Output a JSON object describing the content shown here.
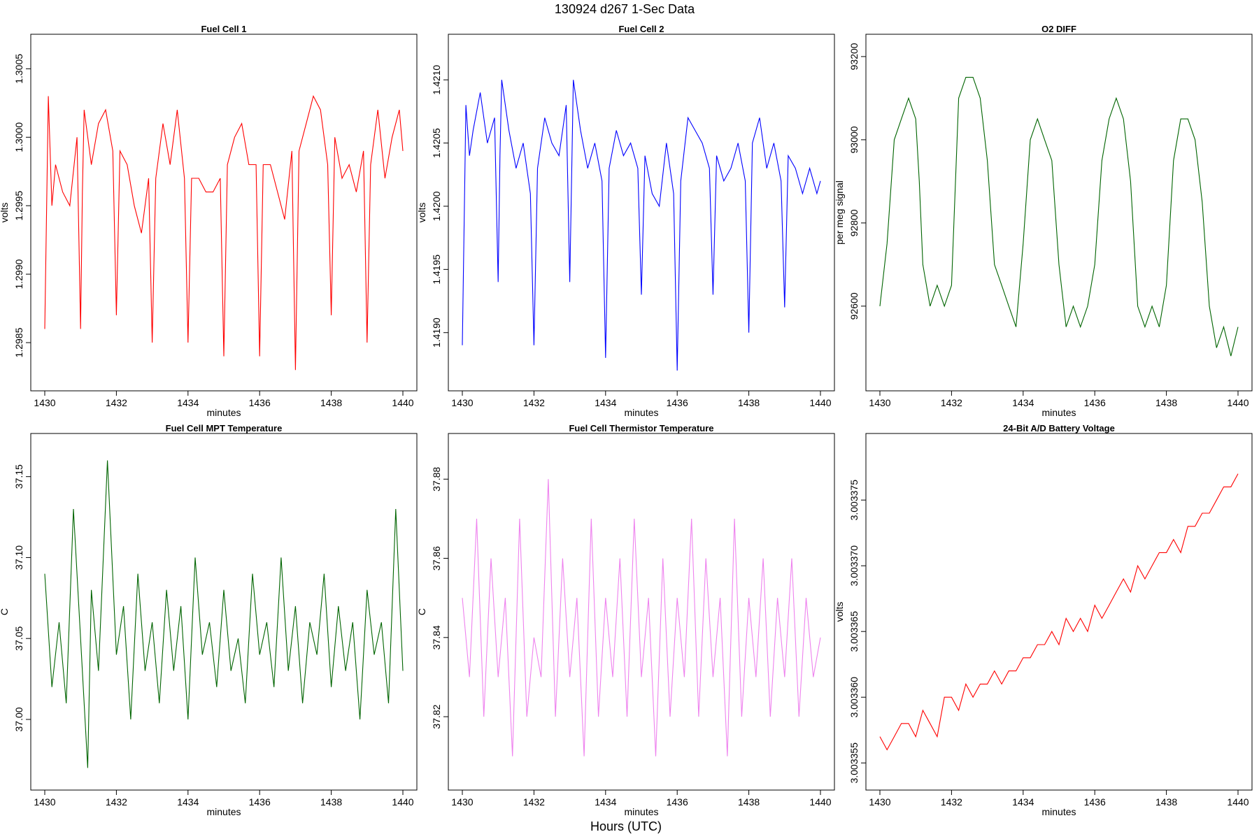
{
  "figure": {
    "title": "130924   d267   1-Sec Data",
    "xlabel": "Hours (UTC)"
  },
  "chart_data": [
    {
      "type": "line",
      "title": "Fuel Cell 1",
      "xlabel": "minutes",
      "ylabel": "volts",
      "color": "#ff0000",
      "xlim": [
        1430,
        1440
      ],
      "ylim": [
        1.29825,
        1.30065
      ],
      "xticks": [
        "1430",
        "1432",
        "1434",
        "1436",
        "1438",
        "1440"
      ],
      "yticks": [
        "1.2985",
        "1.2990",
        "1.2995",
        "1.3000",
        "1.3005"
      ],
      "series": [
        {
          "x": [
            1430.0,
            1430.1,
            1430.2,
            1430.3,
            1430.5,
            1430.7,
            1430.9,
            1431.0,
            1431.05,
            1431.1,
            1431.3,
            1431.5,
            1431.7,
            1431.9,
            1432.0,
            1432.1,
            1432.3,
            1432.5,
            1432.7,
            1432.9,
            1433.0,
            1433.1,
            1433.3,
            1433.5,
            1433.7,
            1433.9,
            1434.0,
            1434.1,
            1434.3,
            1434.5,
            1434.7,
            1434.9,
            1435.0,
            1435.1,
            1435.3,
            1435.5,
            1435.7,
            1435.9,
            1436.0,
            1436.1,
            1436.3,
            1436.5,
            1436.7,
            1436.9,
            1437.0,
            1437.1,
            1437.3,
            1437.5,
            1437.7,
            1437.9,
            1438.0,
            1438.1,
            1438.3,
            1438.5,
            1438.7,
            1438.9,
            1439.0,
            1439.1,
            1439.3,
            1439.5,
            1439.7,
            1439.9,
            1440.0
          ],
          "y": [
            1.2986,
            1.3003,
            1.2995,
            1.2998,
            1.2996,
            1.2995,
            1.3,
            1.2986,
            1.2996,
            1.3002,
            1.2998,
            1.3001,
            1.3002,
            1.2999,
            1.2987,
            1.2999,
            1.2998,
            1.2995,
            1.2993,
            1.2997,
            1.2985,
            1.2997,
            1.3001,
            1.2998,
            1.3002,
            1.2997,
            1.2985,
            1.2997,
            1.2997,
            1.2996,
            1.2996,
            1.2997,
            1.2984,
            1.2998,
            1.3,
            1.3001,
            1.2998,
            1.2998,
            1.2984,
            1.2998,
            1.2998,
            1.2996,
            1.2994,
            1.2999,
            1.2983,
            1.2999,
            1.3001,
            1.3003,
            1.3002,
            1.2998,
            1.2987,
            1.3,
            1.2997,
            1.2998,
            1.2996,
            1.2999,
            1.2985,
            1.2998,
            1.3002,
            1.2997,
            1.3,
            1.3002,
            1.2999
          ]
        }
      ]
    },
    {
      "type": "line",
      "title": "Fuel Cell 2",
      "xlabel": "minutes",
      "ylabel": "volts",
      "color": "#0000ff",
      "xlim": [
        1430,
        1440
      ],
      "ylim": [
        1.41865,
        1.42125
      ],
      "xticks": [
        "1430",
        "1432",
        "1434",
        "1436",
        "1438",
        "1440"
      ],
      "yticks": [
        "1.4190",
        "1.4195",
        "1.4200",
        "1.4205",
        "1.4210"
      ],
      "series": [
        {
          "x": [
            1430.0,
            1430.1,
            1430.2,
            1430.3,
            1430.5,
            1430.7,
            1430.9,
            1431.0,
            1431.05,
            1431.1,
            1431.3,
            1431.5,
            1431.7,
            1431.9,
            1432.0,
            1432.1,
            1432.3,
            1432.5,
            1432.7,
            1432.9,
            1433.0,
            1433.1,
            1433.3,
            1433.5,
            1433.7,
            1433.9,
            1434.0,
            1434.1,
            1434.3,
            1434.5,
            1434.7,
            1434.9,
            1435.0,
            1435.1,
            1435.3,
            1435.5,
            1435.7,
            1435.9,
            1436.0,
            1436.1,
            1436.3,
            1436.5,
            1436.7,
            1436.9,
            1437.0,
            1437.1,
            1437.3,
            1437.5,
            1437.7,
            1437.9,
            1438.0,
            1438.1,
            1438.3,
            1438.5,
            1438.7,
            1438.9,
            1439.0,
            1439.1,
            1439.3,
            1439.5,
            1439.7,
            1439.9,
            1440.0
          ],
          "y": [
            1.4189,
            1.4208,
            1.4204,
            1.4206,
            1.4209,
            1.4205,
            1.4207,
            1.4194,
            1.4204,
            1.421,
            1.4206,
            1.4203,
            1.4205,
            1.4201,
            1.4189,
            1.4203,
            1.4207,
            1.4205,
            1.4204,
            1.4208,
            1.4194,
            1.421,
            1.4206,
            1.4203,
            1.4205,
            1.4202,
            1.4188,
            1.4203,
            1.4206,
            1.4204,
            1.4205,
            1.4203,
            1.4193,
            1.4204,
            1.4201,
            1.42,
            1.4205,
            1.4201,
            1.4187,
            1.4202,
            1.4207,
            1.4206,
            1.4205,
            1.4203,
            1.4193,
            1.4204,
            1.4202,
            1.4203,
            1.4205,
            1.4202,
            1.419,
            1.4205,
            1.4207,
            1.4203,
            1.4205,
            1.4202,
            1.4192,
            1.4204,
            1.4203,
            1.4201,
            1.4203,
            1.4201,
            1.4202
          ]
        }
      ]
    },
    {
      "type": "line",
      "title": "O2 DIFF",
      "xlabel": "minutes",
      "ylabel": "per meg signal",
      "color": "#006400",
      "xlim": [
        1430,
        1440
      ],
      "ylim": [
        92430,
        93220
      ],
      "xticks": [
        "1430",
        "1432",
        "1434",
        "1436",
        "1438",
        "1440"
      ],
      "yticks": [
        "92600",
        "92800",
        "93000",
        "93200"
      ],
      "series": [
        {
          "x": [
            1430.0,
            1430.2,
            1430.4,
            1430.6,
            1430.8,
            1431.0,
            1431.1,
            1431.2,
            1431.4,
            1431.6,
            1431.8,
            1432.0,
            1432.2,
            1432.4,
            1432.6,
            1432.8,
            1433.0,
            1433.2,
            1433.4,
            1433.6,
            1433.8,
            1434.0,
            1434.2,
            1434.4,
            1434.6,
            1434.8,
            1435.0,
            1435.2,
            1435.4,
            1435.6,
            1435.8,
            1436.0,
            1436.2,
            1436.4,
            1436.6,
            1436.8,
            1437.0,
            1437.2,
            1437.4,
            1437.6,
            1437.8,
            1438.0,
            1438.2,
            1438.4,
            1438.6,
            1438.8,
            1439.0,
            1439.2,
            1439.4,
            1439.6,
            1439.8,
            1440.0
          ],
          "y": [
            92600,
            92750,
            93000,
            93050,
            93100,
            93050,
            92900,
            92700,
            92600,
            92650,
            92600,
            92650,
            93100,
            93150,
            93150,
            93100,
            92950,
            92700,
            92650,
            92600,
            92550,
            92750,
            93000,
            93050,
            93000,
            92950,
            92700,
            92550,
            92600,
            92550,
            92600,
            92700,
            92950,
            93050,
            93100,
            93050,
            92900,
            92600,
            92550,
            92600,
            92550,
            92650,
            92950,
            93050,
            93050,
            93000,
            92850,
            92600,
            92500,
            92550,
            92480,
            92550
          ]
        }
      ]
    },
    {
      "type": "line",
      "title": "Fuel Cell MPT Temperature",
      "xlabel": "minutes",
      "ylabel": "C",
      "color": "#006400",
      "xlim": [
        1430,
        1440
      ],
      "ylim": [
        36.965,
        37.168
      ],
      "xticks": [
        "1430",
        "1432",
        "1434",
        "1436",
        "1438",
        "1440"
      ],
      "yticks": [
        "37.00",
        "37.05",
        "37.10",
        "37.15"
      ],
      "series": [
        {
          "x": [
            1430.0,
            1430.2,
            1430.4,
            1430.6,
            1430.8,
            1431.0,
            1431.2,
            1431.3,
            1431.5,
            1431.75,
            1432.0,
            1432.2,
            1432.4,
            1432.6,
            1432.8,
            1433.0,
            1433.2,
            1433.4,
            1433.6,
            1433.8,
            1434.0,
            1434.2,
            1434.4,
            1434.6,
            1434.8,
            1435.0,
            1435.2,
            1435.4,
            1435.6,
            1435.8,
            1436.0,
            1436.2,
            1436.4,
            1436.6,
            1436.8,
            1437.0,
            1437.2,
            1437.4,
            1437.6,
            1437.8,
            1438.0,
            1438.2,
            1438.4,
            1438.6,
            1438.8,
            1439.0,
            1439.2,
            1439.4,
            1439.6,
            1439.8,
            1440.0
          ],
          "y": [
            37.09,
            37.02,
            37.06,
            37.01,
            37.13,
            37.05,
            36.97,
            37.08,
            37.03,
            37.16,
            37.04,
            37.07,
            37.0,
            37.09,
            37.03,
            37.06,
            37.01,
            37.08,
            37.03,
            37.07,
            37.0,
            37.1,
            37.04,
            37.06,
            37.02,
            37.08,
            37.03,
            37.05,
            37.01,
            37.09,
            37.04,
            37.06,
            37.02,
            37.1,
            37.03,
            37.07,
            37.01,
            37.06,
            37.04,
            37.09,
            37.02,
            37.07,
            37.03,
            37.06,
            37.0,
            37.08,
            37.04,
            37.06,
            37.01,
            37.13,
            37.03
          ]
        }
      ]
    },
    {
      "type": "line",
      "title": "Fuel Cell Thermistor Temperature",
      "xlabel": "minutes",
      "ylabel": "C",
      "color": "#ee82ee",
      "xlim": [
        1430,
        1440
      ],
      "ylim": [
        37.805,
        37.888
      ],
      "xticks": [
        "1430",
        "1432",
        "1434",
        "1436",
        "1438",
        "1440"
      ],
      "yticks": [
        "37.82",
        "37.84",
        "37.86",
        "37.88"
      ],
      "series": [
        {
          "x": [
            1430.0,
            1430.2,
            1430.4,
            1430.6,
            1430.8,
            1431.0,
            1431.2,
            1431.4,
            1431.6,
            1431.8,
            1432.0,
            1432.2,
            1432.4,
            1432.6,
            1432.8,
            1433.0,
            1433.2,
            1433.4,
            1433.6,
            1433.8,
            1434.0,
            1434.2,
            1434.4,
            1434.6,
            1434.8,
            1435.0,
            1435.2,
            1435.4,
            1435.6,
            1435.8,
            1436.0,
            1436.2,
            1436.4,
            1436.6,
            1436.8,
            1437.0,
            1437.2,
            1437.4,
            1437.6,
            1437.8,
            1438.0,
            1438.2,
            1438.4,
            1438.6,
            1438.8,
            1439.0,
            1439.2,
            1439.4,
            1439.6,
            1439.8,
            1440.0
          ],
          "y": [
            37.85,
            37.83,
            37.87,
            37.82,
            37.86,
            37.83,
            37.85,
            37.81,
            37.87,
            37.82,
            37.84,
            37.83,
            37.88,
            37.82,
            37.86,
            37.83,
            37.85,
            37.81,
            37.87,
            37.82,
            37.85,
            37.83,
            37.86,
            37.82,
            37.87,
            37.83,
            37.85,
            37.81,
            37.86,
            37.82,
            37.85,
            37.83,
            37.87,
            37.82,
            37.86,
            37.83,
            37.85,
            37.81,
            37.87,
            37.82,
            37.85,
            37.83,
            37.86,
            37.82,
            37.85,
            37.83,
            37.86,
            37.82,
            37.85,
            37.83,
            37.84
          ]
        }
      ]
    },
    {
      "type": "line",
      "title": "24-Bit A/D Battery Voltage",
      "xlabel": "minutes",
      "ylabel": "volts",
      "color": "#ff0000",
      "xlim": [
        1430,
        1440
      ],
      "ylim": [
        3.003354,
        3.003379
      ],
      "xticks": [
        "1430",
        "1432",
        "1434",
        "1436",
        "1438",
        "1440"
      ],
      "yticks": [
        "3.003355",
        "3.003360",
        "3.003365",
        "3.003370",
        "3.003375"
      ],
      "series": [
        {
          "x": [
            1430.0,
            1430.2,
            1430.4,
            1430.6,
            1430.8,
            1431.0,
            1431.2,
            1431.4,
            1431.6,
            1431.8,
            1432.0,
            1432.2,
            1432.4,
            1432.6,
            1432.8,
            1433.0,
            1433.2,
            1433.4,
            1433.6,
            1433.8,
            1434.0,
            1434.2,
            1434.4,
            1434.6,
            1434.8,
            1435.0,
            1435.2,
            1435.4,
            1435.6,
            1435.8,
            1436.0,
            1436.2,
            1436.4,
            1436.6,
            1436.8,
            1437.0,
            1437.2,
            1437.4,
            1437.6,
            1437.8,
            1438.0,
            1438.2,
            1438.4,
            1438.6,
            1438.8,
            1439.0,
            1439.2,
            1439.4,
            1439.6,
            1439.8,
            1440.0
          ],
          "y": [
            3.003357,
            3.003356,
            3.003357,
            3.003358,
            3.003358,
            3.003357,
            3.003359,
            3.003358,
            3.003357,
            3.00336,
            3.00336,
            3.003359,
            3.003361,
            3.00336,
            3.003361,
            3.003361,
            3.003362,
            3.003361,
            3.003362,
            3.003362,
            3.003363,
            3.003363,
            3.003364,
            3.003364,
            3.003365,
            3.003364,
            3.003366,
            3.003365,
            3.003366,
            3.003365,
            3.003367,
            3.003366,
            3.003367,
            3.003368,
            3.003369,
            3.003368,
            3.00337,
            3.003369,
            3.00337,
            3.003371,
            3.003371,
            3.003372,
            3.003371,
            3.003373,
            3.003373,
            3.003374,
            3.003374,
            3.003375,
            3.003376,
            3.003376,
            3.003377
          ]
        }
      ]
    }
  ]
}
